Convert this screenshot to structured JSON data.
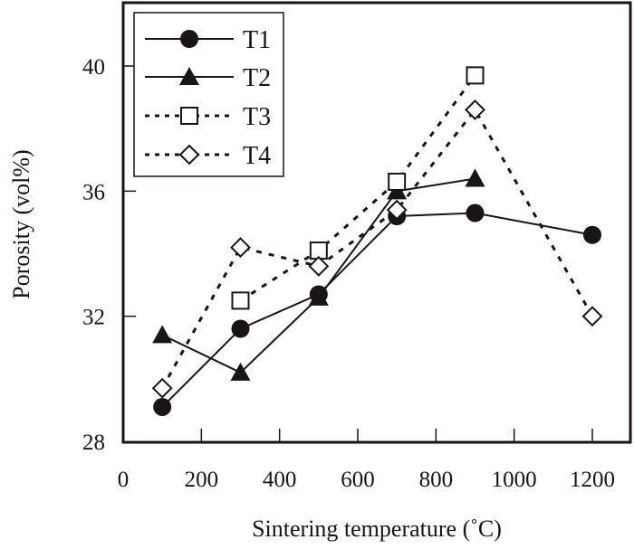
{
  "chart_data": {
    "type": "line",
    "title": "",
    "xlabel": "Sintering temperature (˚C)",
    "ylabel": "Porosity (vol%)",
    "xlim": [
      0,
      1300
    ],
    "ylim": [
      28,
      42
    ],
    "xticks": [
      0,
      200,
      400,
      600,
      800,
      1000,
      1200
    ],
    "yticks": [
      28,
      32,
      36,
      40
    ],
    "xtick_labels": [
      "0",
      "200",
      "400",
      "600",
      "800",
      "1000",
      "1200"
    ],
    "ytick_labels": [
      "28",
      "32",
      "36",
      "40"
    ],
    "grid": false,
    "legend_position": "top-left",
    "series": [
      {
        "name": "T1",
        "marker": "filled-circle",
        "line": "solid",
        "x": [
          100,
          300,
          500,
          700,
          900,
          1200
        ],
        "y": [
          29.1,
          31.6,
          32.7,
          35.2,
          35.3,
          34.6
        ]
      },
      {
        "name": "T2",
        "marker": "filled-triangle",
        "line": "solid",
        "x": [
          100,
          300,
          500,
          700,
          900
        ],
        "y": [
          31.4,
          30.2,
          32.6,
          36.0,
          36.4
        ]
      },
      {
        "name": "T3",
        "marker": "open-square",
        "line": "dashed",
        "x": [
          300,
          500,
          700,
          900
        ],
        "y": [
          32.5,
          34.1,
          36.3,
          39.7
        ]
      },
      {
        "name": "T4",
        "marker": "open-diamond",
        "line": "dashed",
        "x": [
          100,
          300,
          500,
          700,
          900,
          1200
        ],
        "y": [
          29.7,
          34.2,
          33.6,
          35.4,
          38.6,
          32.0
        ]
      }
    ],
    "colors": {
      "ink": "#1a1414",
      "background": "#ffffff"
    }
  }
}
